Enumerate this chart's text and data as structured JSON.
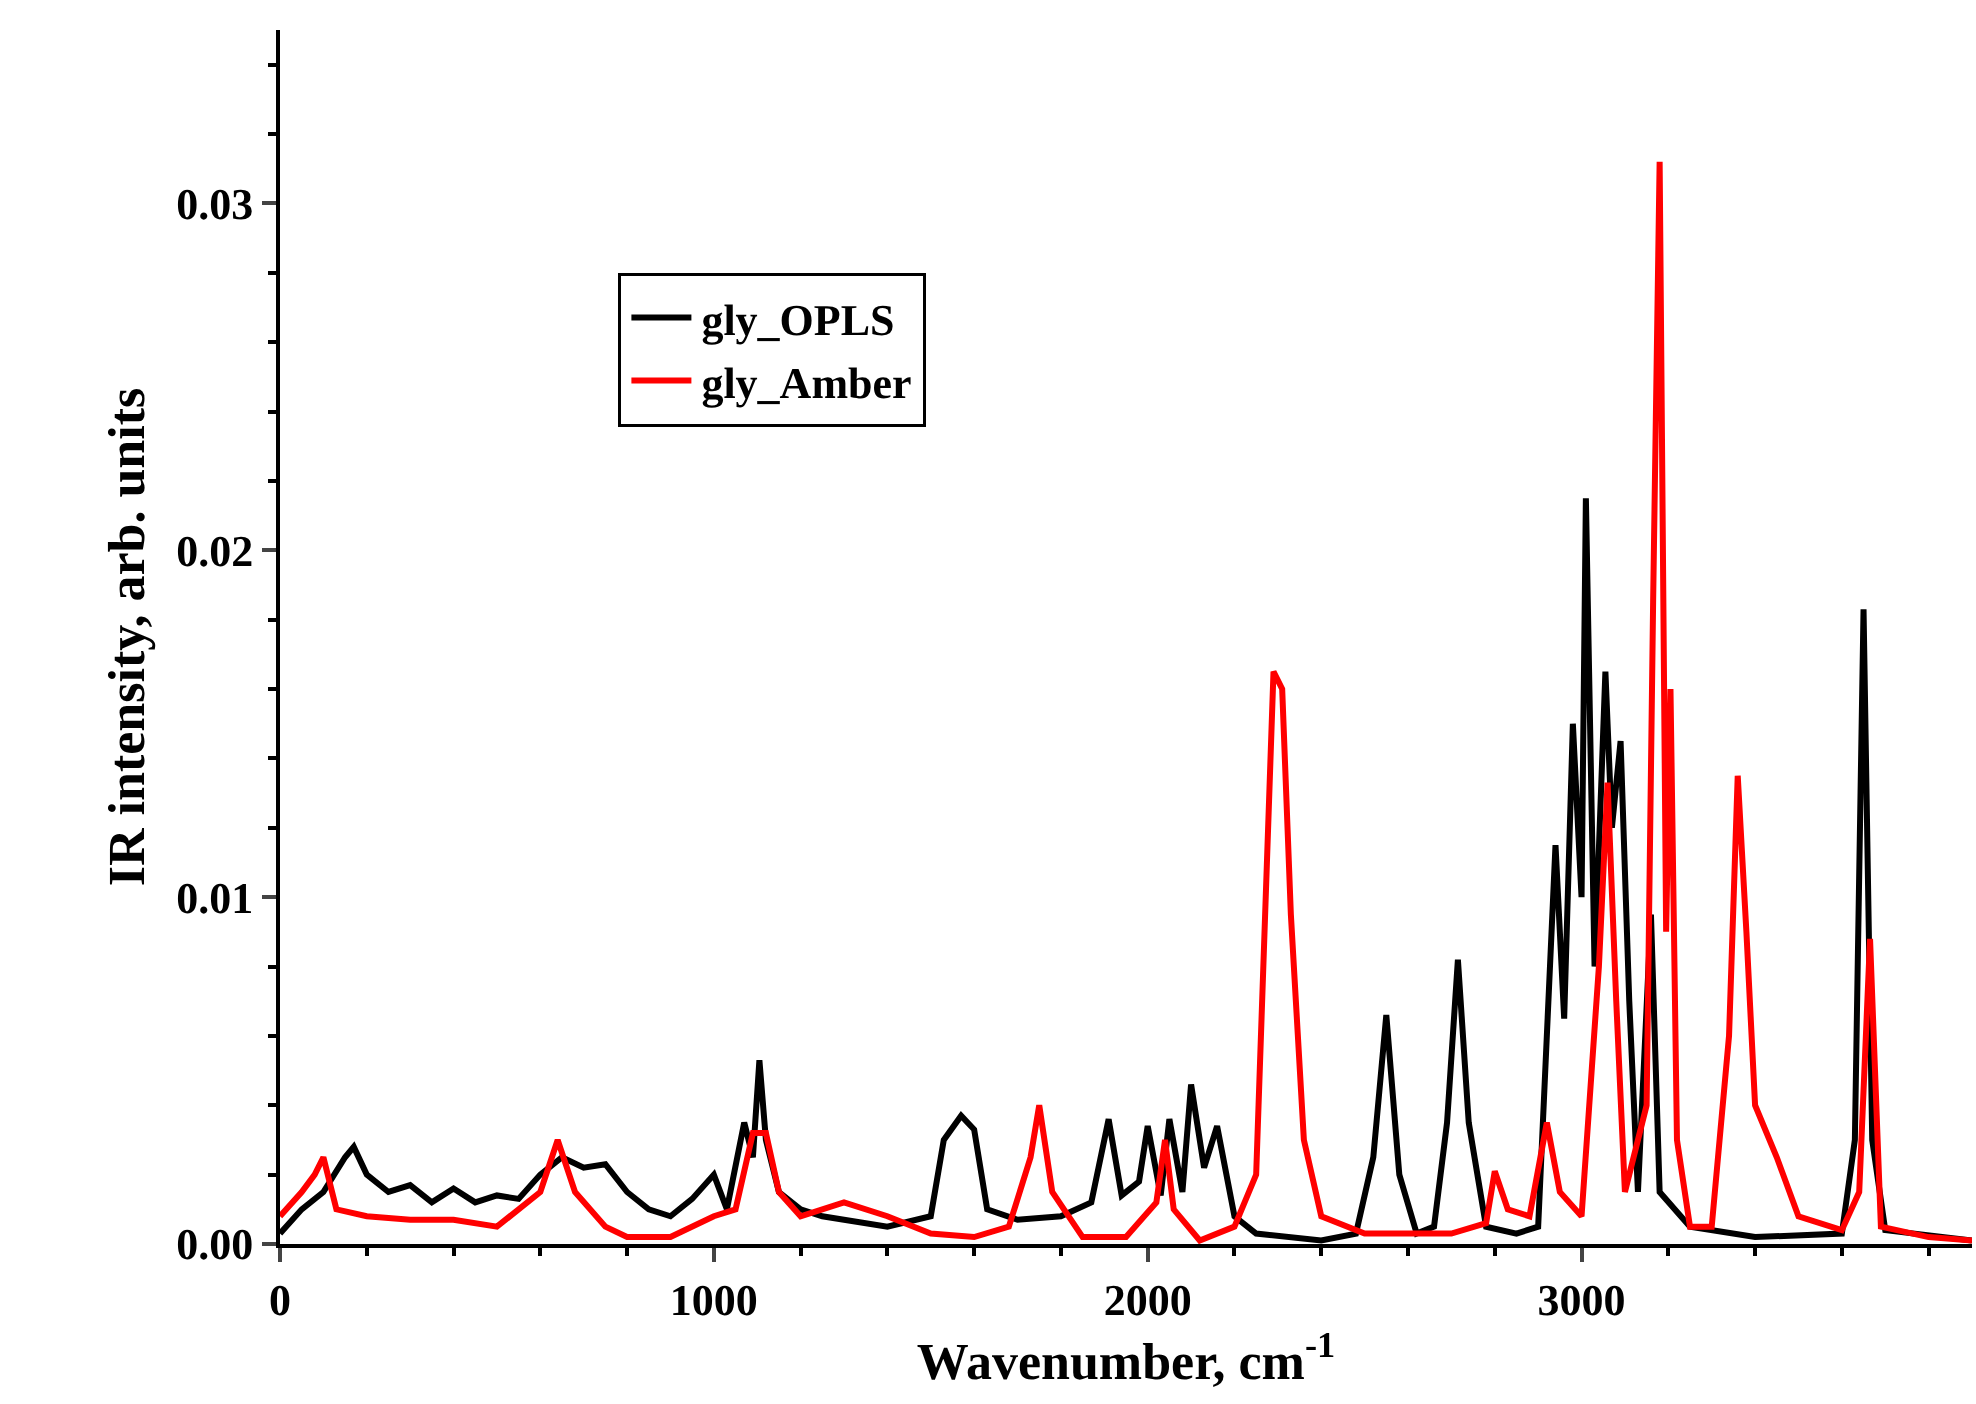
{
  "chart_data": {
    "type": "line",
    "xlabel": "Wavenumber, cm$^{-1}$",
    "ylabel": "IR intensity, arb. units",
    "xlim": [
      0,
      3900
    ],
    "ylim": [
      0,
      0.035
    ],
    "xticks": [
      0,
      1000,
      2000,
      3000
    ],
    "yticks": [
      {
        "value": 0,
        "label": "0.00"
      },
      {
        "value": 0.01,
        "label": "0.01"
      },
      {
        "value": 0.02,
        "label": "0.02"
      },
      {
        "value": 0.03,
        "label": "0.03"
      }
    ],
    "legend": "top left",
    "marker": "none",
    "line_style": "solid",
    "series": [
      {
        "name": "gly_OPLS",
        "color": "#000000",
        "x": [
          0,
          50,
          100,
          150,
          170,
          200,
          250,
          300,
          350,
          400,
          450,
          500,
          550,
          600,
          650,
          700,
          750,
          800,
          850,
          900,
          950,
          1000,
          1030,
          1070,
          1090,
          1105,
          1120,
          1150,
          1200,
          1250,
          1300,
          1400,
          1500,
          1530,
          1570,
          1600,
          1630,
          1700,
          1800,
          1870,
          1910,
          1940,
          1980,
          2000,
          2030,
          2050,
          2080,
          2100,
          2130,
          2160,
          2200,
          2250,
          2400,
          2480,
          2520,
          2550,
          2580,
          2620,
          2660,
          2690,
          2715,
          2740,
          2780,
          2850,
          2900,
          2940,
          2960,
          2980,
          3000,
          3010,
          3030,
          3055,
          3070,
          3090,
          3110,
          3130,
          3160,
          3180,
          3250,
          3400,
          3600,
          3630,
          3650,
          3670,
          3700,
          3900
        ],
        "values": [
          0.0003,
          0.001,
          0.0015,
          0.0025,
          0.0028,
          0.002,
          0.0015,
          0.0017,
          0.0012,
          0.0016,
          0.0012,
          0.0014,
          0.0013,
          0.002,
          0.0025,
          0.0022,
          0.0023,
          0.0015,
          0.001,
          0.0008,
          0.0013,
          0.002,
          0.001,
          0.0035,
          0.0025,
          0.0053,
          0.003,
          0.0015,
          0.001,
          0.0008,
          0.0007,
          0.0005,
          0.0008,
          0.003,
          0.0037,
          0.0033,
          0.001,
          0.0007,
          0.0008,
          0.0012,
          0.0036,
          0.0014,
          0.0018,
          0.0034,
          0.0014,
          0.0036,
          0.0015,
          0.0046,
          0.0022,
          0.0034,
          0.0008,
          0.0003,
          0.0001,
          0.0003,
          0.0025,
          0.0066,
          0.002,
          0.0003,
          0.0005,
          0.0035,
          0.0082,
          0.0035,
          0.0005,
          0.0003,
          0.0005,
          0.0115,
          0.0065,
          0.015,
          0.01,
          0.0215,
          0.008,
          0.0165,
          0.012,
          0.0145,
          0.007,
          0.0015,
          0.0095,
          0.0015,
          0.0005,
          0.0002,
          0.0003,
          0.003,
          0.0183,
          0.003,
          0.0004,
          0.0001
        ]
      },
      {
        "name": "gly_Amber",
        "color": "#ff0000",
        "x": [
          0,
          50,
          80,
          100,
          130,
          200,
          300,
          400,
          500,
          600,
          640,
          680,
          750,
          800,
          900,
          1000,
          1050,
          1090,
          1120,
          1150,
          1200,
          1300,
          1400,
          1500,
          1600,
          1680,
          1730,
          1750,
          1780,
          1850,
          1950,
          2020,
          2040,
          2060,
          2120,
          2200,
          2250,
          2290,
          2310,
          2330,
          2360,
          2400,
          2500,
          2700,
          2780,
          2800,
          2830,
          2880,
          2920,
          2950,
          3000,
          3040,
          3060,
          3080,
          3100,
          3120,
          3150,
          3165,
          3180,
          3195,
          3205,
          3220,
          3250,
          3300,
          3340,
          3360,
          3380,
          3400,
          3450,
          3500,
          3600,
          3640,
          3665,
          3690,
          3800,
          3900
        ],
        "values": [
          0.0008,
          0.0015,
          0.002,
          0.0025,
          0.001,
          0.0008,
          0.0007,
          0.0007,
          0.0005,
          0.0015,
          0.003,
          0.0015,
          0.0005,
          0.0002,
          0.0002,
          0.0008,
          0.001,
          0.0032,
          0.0032,
          0.0015,
          0.0008,
          0.0012,
          0.0008,
          0.0003,
          0.0002,
          0.0005,
          0.0025,
          0.004,
          0.0015,
          0.0002,
          0.0002,
          0.0012,
          0.003,
          0.001,
          0.0001,
          0.0005,
          0.002,
          0.0165,
          0.016,
          0.0095,
          0.003,
          0.0008,
          0.0003,
          0.0003,
          0.0006,
          0.0021,
          0.001,
          0.0008,
          0.0035,
          0.0015,
          0.0008,
          0.008,
          0.0133,
          0.007,
          0.0015,
          0.0025,
          0.004,
          0.0185,
          0.0312,
          0.009,
          0.016,
          0.003,
          0.0005,
          0.0005,
          0.006,
          0.0135,
          0.009,
          0.004,
          0.0025,
          0.0008,
          0.0004,
          0.0015,
          0.0088,
          0.0005,
          0.0002,
          0.0001
        ]
      }
    ]
  }
}
